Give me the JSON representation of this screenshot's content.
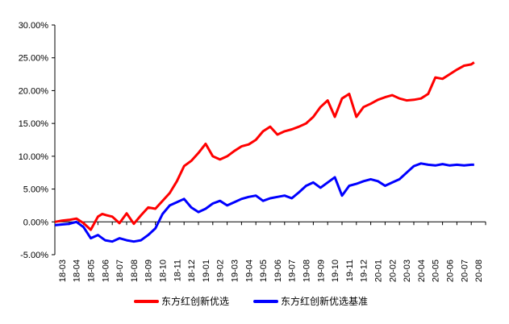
{
  "chart_data": {
    "type": "line",
    "title": "",
    "xlabel": "",
    "ylabel": "",
    "ylim": [
      -0.05,
      0.3
    ],
    "y_ticks": [
      "-5.00%",
      "0.00%",
      "5.00%",
      "10.00%",
      "15.00%",
      "20.00%",
      "25.00%",
      "30.00%"
    ],
    "x_tick_labels": [
      "18-03",
      "18-04",
      "18-05",
      "18-06",
      "18-07",
      "18-08",
      "18-09",
      "18-10",
      "18-11",
      "18-12",
      "19-01",
      "19-02",
      "19-03",
      "19-04",
      "19-05",
      "19-06",
      "19-07",
      "19-08",
      "19-09",
      "19-10",
      "19-11",
      "19-12",
      "20-01",
      "20-02",
      "20-03",
      "20-04",
      "20-05",
      "20-06",
      "20-07",
      "20-08"
    ],
    "grid": false,
    "legend_position": "bottom",
    "series": [
      {
        "name": "东方红创新优选",
        "color": "#ff0000",
        "x": [
          0.0,
          0.5,
          1.0,
          1.5,
          2.0,
          2.5,
          3.0,
          3.3,
          3.6,
          4.0,
          4.5,
          5.0,
          5.5,
          6.0,
          6.5,
          7.0,
          7.5,
          8.0,
          8.5,
          9.0,
          9.5,
          10.0,
          10.5,
          11.0,
          11.5,
          12.0,
          12.5,
          13.0,
          13.5,
          14.0,
          14.5,
          15.0,
          15.5,
          16.0,
          16.5,
          17.0,
          17.5,
          18.0,
          18.5,
          19.0,
          19.5,
          20.0,
          20.5,
          21.0,
          21.5,
          22.0,
          22.5,
          23.0,
          23.5,
          24.0,
          24.5,
          25.0,
          25.5,
          26.0,
          26.5,
          27.0,
          27.5,
          28.0,
          28.5,
          29.0,
          29.2
        ],
        "values": [
          0.0,
          0.002,
          0.003,
          0.005,
          -0.002,
          -0.012,
          0.008,
          0.012,
          0.01,
          0.008,
          -0.002,
          0.013,
          -0.003,
          0.01,
          0.022,
          0.02,
          0.032,
          0.044,
          0.062,
          0.085,
          0.093,
          0.105,
          0.119,
          0.1,
          0.095,
          0.1,
          0.108,
          0.115,
          0.118,
          0.125,
          0.138,
          0.145,
          0.133,
          0.138,
          0.141,
          0.145,
          0.15,
          0.16,
          0.175,
          0.185,
          0.16,
          0.188,
          0.195,
          0.16,
          0.175,
          0.18,
          0.186,
          0.19,
          0.193,
          0.188,
          0.185,
          0.186,
          0.188,
          0.195,
          0.22,
          0.218,
          0.225,
          0.232,
          0.238,
          0.24,
          0.243
        ]
      },
      {
        "name": "东方红创新优选基准",
        "color": "#0000ff",
        "x": [
          0.0,
          0.5,
          1.0,
          1.5,
          2.0,
          2.5,
          3.0,
          3.5,
          4.0,
          4.5,
          5.0,
          5.5,
          6.0,
          6.5,
          7.0,
          7.5,
          8.0,
          8.5,
          9.0,
          9.5,
          10.0,
          10.5,
          11.0,
          11.5,
          12.0,
          12.5,
          13.0,
          13.5,
          14.0,
          14.5,
          15.0,
          15.5,
          16.0,
          16.5,
          17.0,
          17.5,
          18.0,
          18.5,
          19.0,
          19.5,
          20.0,
          20.5,
          21.0,
          21.5,
          22.0,
          22.5,
          23.0,
          23.5,
          24.0,
          24.5,
          25.0,
          25.5,
          26.0,
          26.5,
          27.0,
          27.5,
          28.0,
          28.5,
          29.0,
          29.2
        ],
        "values": [
          -0.005,
          -0.004,
          -0.003,
          0.0,
          -0.008,
          -0.025,
          -0.02,
          -0.028,
          -0.03,
          -0.025,
          -0.028,
          -0.03,
          -0.028,
          -0.02,
          -0.01,
          0.012,
          0.025,
          0.03,
          0.035,
          0.022,
          0.015,
          0.02,
          0.028,
          0.032,
          0.025,
          0.03,
          0.035,
          0.038,
          0.04,
          0.032,
          0.036,
          0.038,
          0.04,
          0.036,
          0.045,
          0.055,
          0.06,
          0.052,
          0.06,
          0.068,
          0.04,
          0.055,
          0.058,
          0.062,
          0.065,
          0.062,
          0.055,
          0.06,
          0.065,
          0.075,
          0.085,
          0.089,
          0.087,
          0.086,
          0.088,
          0.086,
          0.087,
          0.086,
          0.087,
          0.087
        ]
      }
    ]
  }
}
